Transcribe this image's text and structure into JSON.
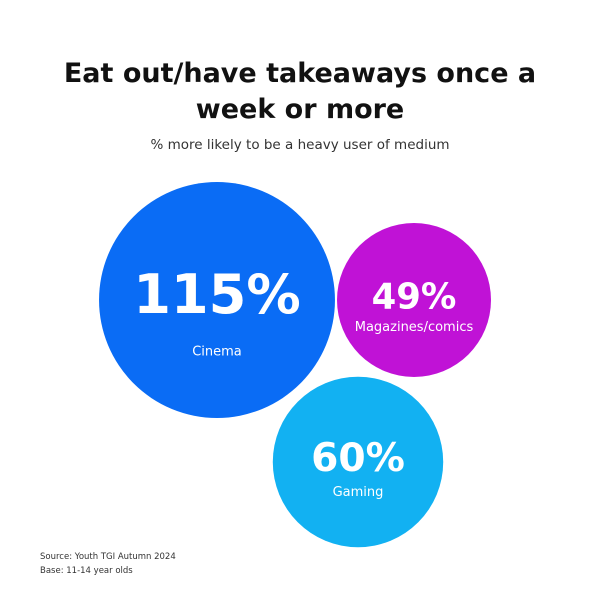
{
  "chart_data": {
    "type": "bubble",
    "title": "Eat out/have takeaways once a week or more",
    "subtitle": "% more likely to be a heavy user of medium",
    "categories": [
      "Cinema",
      "Magazines/comics",
      "Gaming"
    ],
    "values": [
      115,
      49,
      60
    ],
    "value_labels": [
      "115%",
      "49%",
      "60%"
    ],
    "colors": [
      "#0a6cf5",
      "#c012d6",
      "#12b1f2"
    ],
    "source": "Source: Youth TGI Autumn 2024",
    "base": "Base: 11-14 year olds"
  }
}
